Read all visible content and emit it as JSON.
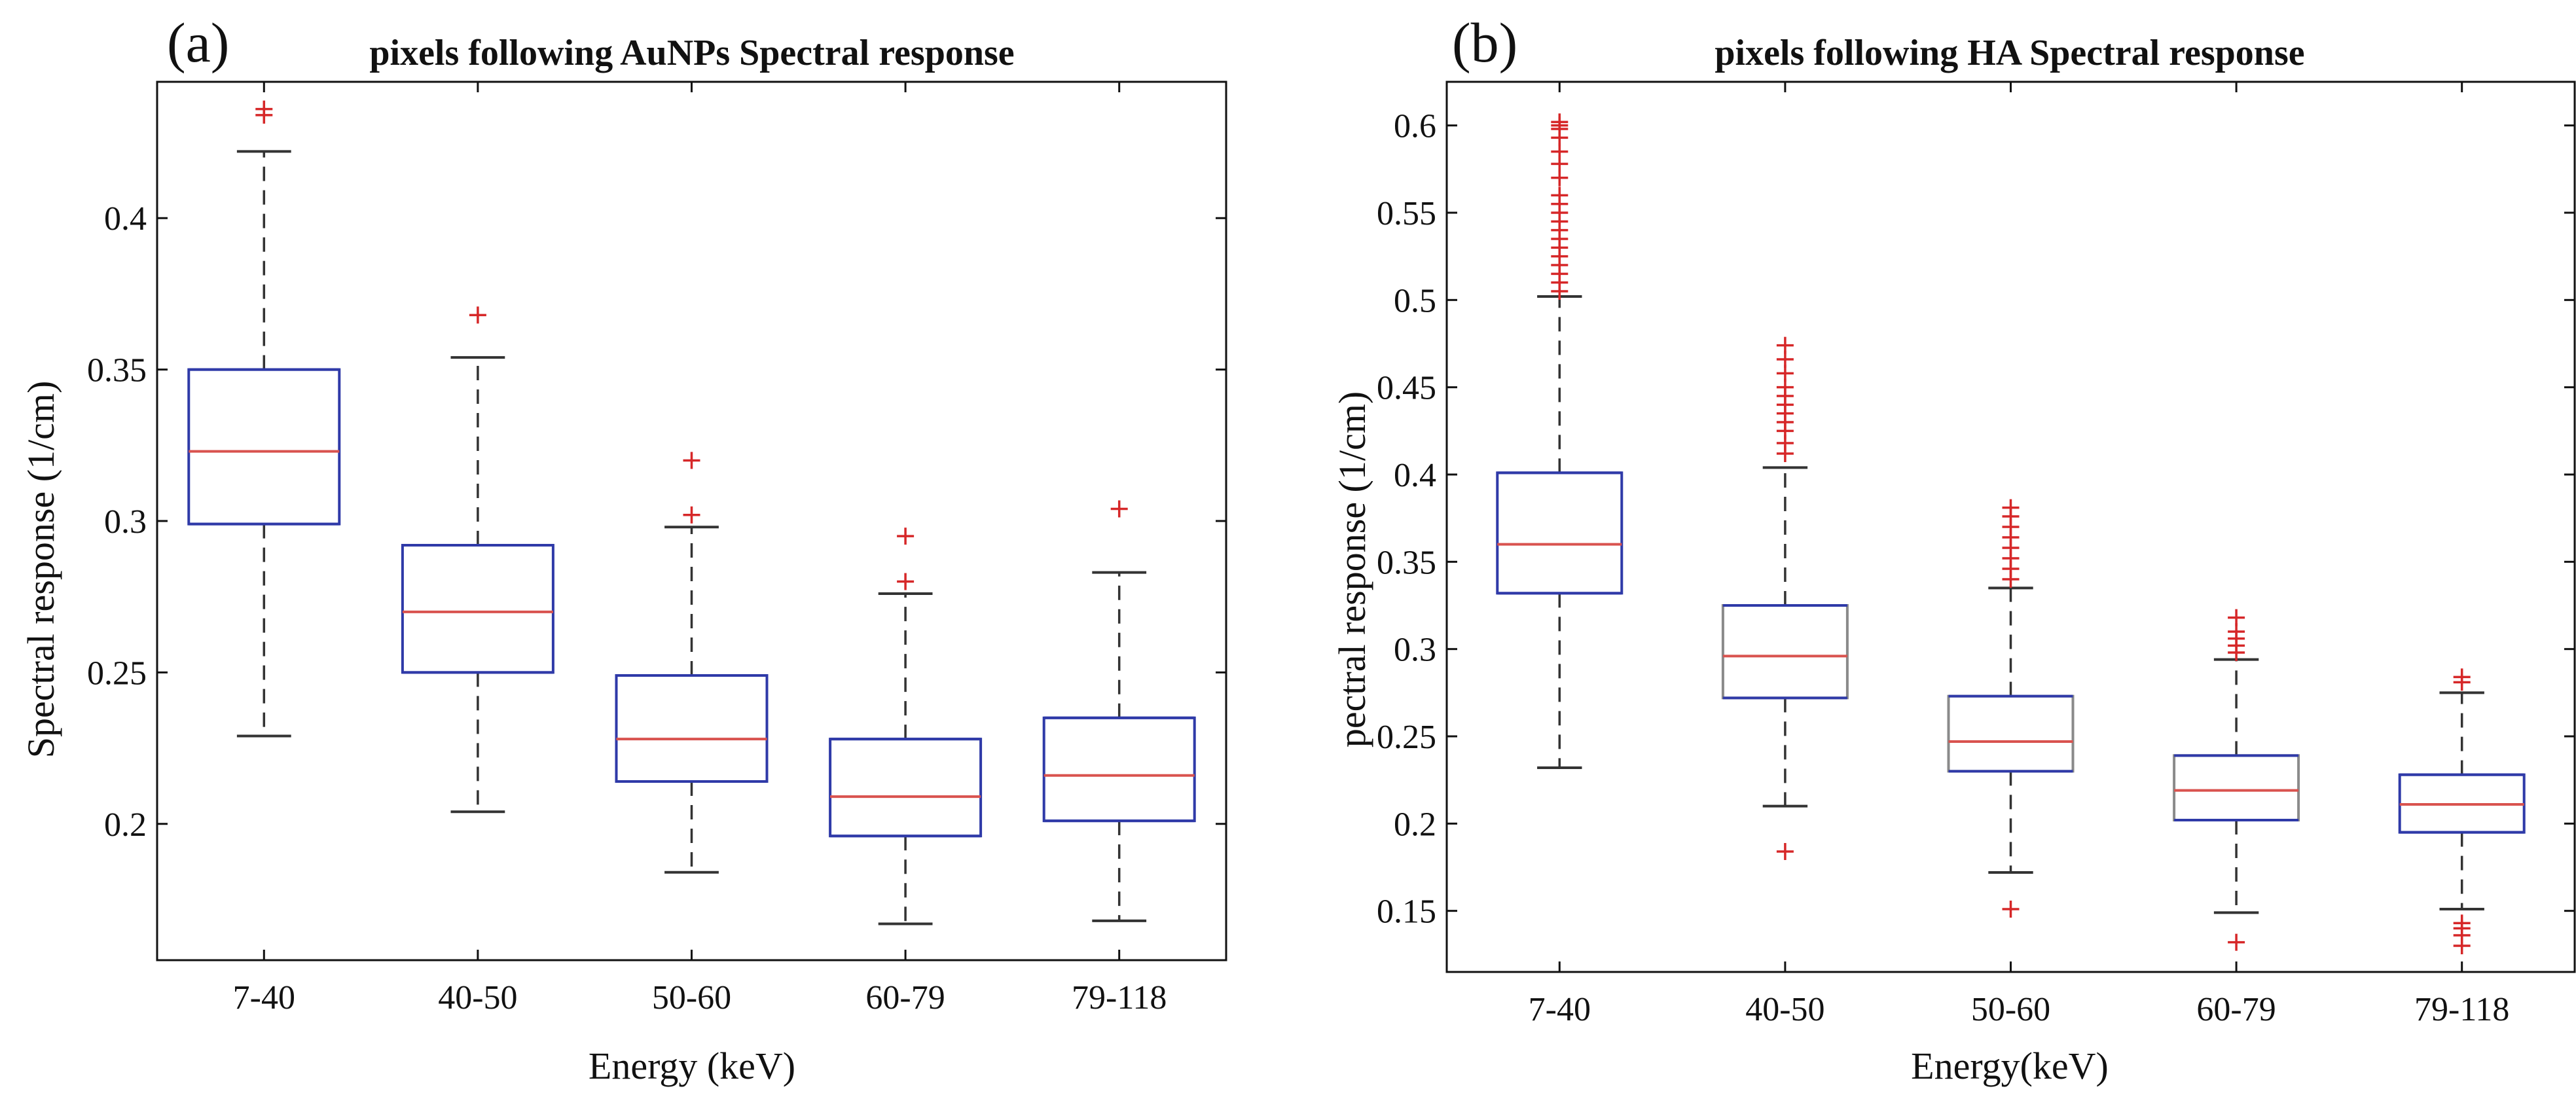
{
  "chart_data": [
    {
      "type": "box",
      "panel_label": "(a)",
      "title": "pixels following AuNPs Spectral response",
      "xlabel": "Energy (keV)",
      "ylabel": "Spectral response (1/cm)",
      "categories": [
        "7-40",
        "40-50",
        "50-60",
        "60-79",
        "79-118"
      ],
      "ylim": [
        0.155,
        0.445
      ],
      "yticks": [
        0.2,
        0.25,
        0.3,
        0.35,
        0.4
      ],
      "ytick_labels": [
        "0.2",
        "0.25",
        "0.3",
        "0.35",
        "0.4"
      ],
      "boxes": [
        {
          "category": "7-40",
          "whisker_low": 0.229,
          "q1": 0.299,
          "median": 0.323,
          "q3": 0.35,
          "whisker_high": 0.422,
          "outliers": [
            0.434,
            0.436
          ]
        },
        {
          "category": "40-50",
          "whisker_low": 0.204,
          "q1": 0.25,
          "median": 0.27,
          "q3": 0.292,
          "whisker_high": 0.354,
          "outliers": [
            0.368
          ]
        },
        {
          "category": "50-60",
          "whisker_low": 0.184,
          "q1": 0.214,
          "median": 0.228,
          "q3": 0.249,
          "whisker_high": 0.298,
          "outliers": [
            0.302,
            0.32
          ]
        },
        {
          "category": "60-79",
          "whisker_low": 0.167,
          "q1": 0.196,
          "median": 0.209,
          "q3": 0.228,
          "whisker_high": 0.276,
          "outliers": [
            0.28,
            0.295
          ]
        },
        {
          "category": "79-118",
          "whisker_low": 0.168,
          "q1": 0.201,
          "median": 0.216,
          "q3": 0.235,
          "whisker_high": 0.283,
          "outliers": [
            0.304
          ]
        }
      ]
    },
    {
      "type": "box",
      "panel_label": "(b)",
      "title": "pixels following HA Spectral response",
      "xlabel": "Energy(keV)",
      "ylabel": "pectral response (1/cm)",
      "categories": [
        "7-40",
        "40-50",
        "50-60",
        "60-79",
        "79-118"
      ],
      "ylim": [
        0.115,
        0.625
      ],
      "yticks": [
        0.15,
        0.2,
        0.25,
        0.3,
        0.35,
        0.4,
        0.45,
        0.5,
        0.55,
        0.6
      ],
      "ytick_labels": [
        "0.15",
        "0.2",
        "0.25",
        "0.3",
        "0.35",
        "0.4",
        "0.45",
        "0.5",
        "0.55",
        "0.6"
      ],
      "boxes": [
        {
          "category": "7-40",
          "whisker_low": 0.232,
          "q1": 0.332,
          "median": 0.36,
          "q3": 0.401,
          "whisker_high": 0.502,
          "outliers": [
            0.505,
            0.51,
            0.515,
            0.52,
            0.525,
            0.53,
            0.535,
            0.54,
            0.545,
            0.55,
            0.555,
            0.56,
            0.57,
            0.578,
            0.585,
            0.593,
            0.598,
            0.6,
            0.602
          ]
        },
        {
          "category": "40-50",
          "whisker_low": 0.21,
          "q1": 0.272,
          "median": 0.296,
          "q3": 0.325,
          "whisker_high": 0.404,
          "outliers": [
            0.184,
            0.412,
            0.418,
            0.425,
            0.43,
            0.435,
            0.44,
            0.445,
            0.45,
            0.458,
            0.466,
            0.474
          ]
        },
        {
          "category": "50-60",
          "whisker_low": 0.172,
          "q1": 0.23,
          "median": 0.247,
          "q3": 0.273,
          "whisker_high": 0.335,
          "outliers": [
            0.151,
            0.34,
            0.346,
            0.352,
            0.358,
            0.364,
            0.37,
            0.376,
            0.381
          ]
        },
        {
          "category": "60-79",
          "whisker_low": 0.149,
          "q1": 0.202,
          "median": 0.219,
          "q3": 0.239,
          "whisker_high": 0.294,
          "outliers": [
            0.132,
            0.298,
            0.302,
            0.306,
            0.31,
            0.318
          ]
        },
        {
          "category": "79-118",
          "whisker_low": 0.151,
          "q1": 0.195,
          "median": 0.211,
          "q3": 0.228,
          "whisker_high": 0.275,
          "outliers": [
            0.13,
            0.136,
            0.14,
            0.143,
            0.281,
            0.284
          ]
        }
      ]
    }
  ],
  "colors": {
    "box_edge": "#2f3aa8",
    "box_edge_alt": "#8a8a8a",
    "median": "#d9534f",
    "whisker": "#333333",
    "outlier": "#d62728",
    "axes": "#111111"
  }
}
